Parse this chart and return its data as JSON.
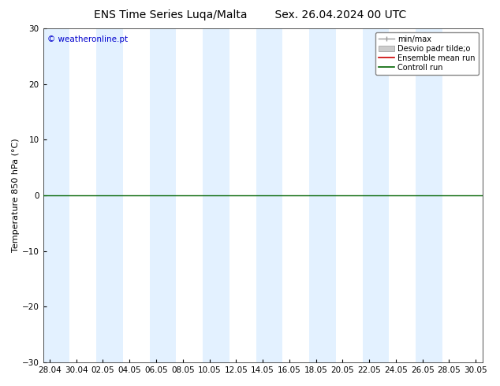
{
  "title_left": "ENS Time Series Luqa/Malta",
  "title_right": "Sex. 26.04.2024 00 UTC",
  "ylabel": "Temperature 850 hPa (°C)",
  "ylim": [
    -30,
    30
  ],
  "yticks": [
    -30,
    -20,
    -10,
    0,
    10,
    20,
    30
  ],
  "background_color": "#ffffff",
  "plot_bg_color": "#ffffff",
  "watermark": "© weatheronline.pt",
  "watermark_color": "#0000cd",
  "zero_line_color": "#006400",
  "zero_line_y": 0,
  "band_color": "#ddeeff",
  "band_alpha": 0.8,
  "band_edge_color": "#b8d0e8",
  "xtick_labels": [
    "28.04",
    "30.04",
    "02.05",
    "04.05",
    "06.05",
    "08.05",
    "10.05",
    "12.05",
    "14.05",
    "16.05",
    "18.05",
    "20.05",
    "22.05",
    "24.05",
    "26.05",
    "28.05",
    "30.05"
  ],
  "xtick_positions": [
    0,
    2,
    4,
    6,
    8,
    10,
    12,
    14,
    16,
    18,
    20,
    22,
    24,
    26,
    28,
    30,
    32
  ],
  "xmin": -0.5,
  "xmax": 32.5,
  "band_starts": [
    -0.5,
    3.5,
    7.5,
    11.5,
    15.5,
    19.5,
    23.5,
    27.5
  ],
  "band_ends": [
    1.5,
    5.5,
    9.5,
    13.5,
    17.5,
    21.5,
    25.5,
    29.5
  ],
  "legend_labels": [
    "min/max",
    "Desvio padr tilde;o",
    "Ensemble mean run",
    "Controll run"
  ],
  "title_fontsize": 10,
  "axis_fontsize": 8,
  "tick_fontsize": 7.5,
  "legend_fontsize": 7
}
